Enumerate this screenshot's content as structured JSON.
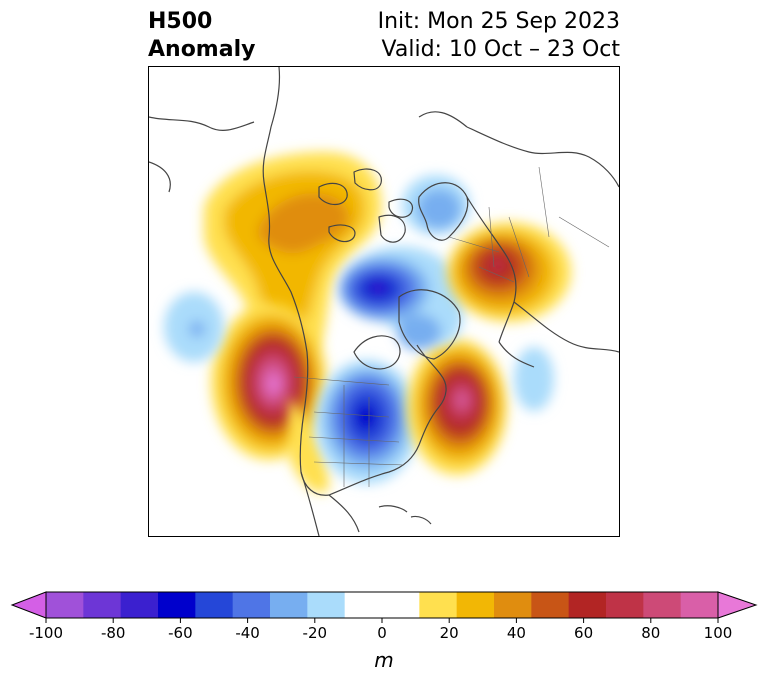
{
  "title": {
    "left_line1": "H500",
    "left_line2": "Anomaly",
    "right_line1": "Init: Mon 25 Sep 2023",
    "right_line2": "Valid: 10 Oct – 23 Oct"
  },
  "colorbar": {
    "unit": "m",
    "min": -100,
    "max": 100,
    "step": 10,
    "colors": [
      "#d45fe6",
      "#a051d9",
      "#6d36d6",
      "#3b20cf",
      "#0000cc",
      "#2547d8",
      "#4f75e6",
      "#77aef0",
      "#aadcfb",
      "#ffffff",
      "#ffffff",
      "#ffe04f",
      "#f2b705",
      "#e08d0f",
      "#c85516",
      "#b22524",
      "#bf3347",
      "#cd4a77",
      "#d95fa8",
      "#e878d8"
    ],
    "tick_values": [
      "-100",
      "-80",
      "-60",
      "-40",
      "-20",
      "0",
      "20",
      "40",
      "60",
      "80",
      "100"
    ]
  },
  "map": {
    "projection": "north-polar-stereographic",
    "anomaly_centers": [
      {
        "region": "northeast-pacific",
        "sign": "positive",
        "peak": 100
      },
      {
        "region": "central-north-america",
        "sign": "negative",
        "peak": -60
      },
      {
        "region": "northwest-atlantic",
        "sign": "positive",
        "peak": 80
      },
      {
        "region": "arctic-ocean",
        "sign": "negative",
        "peak": -60
      },
      {
        "region": "western-russia",
        "sign": "positive",
        "peak": 60
      },
      {
        "region": "scandinavia",
        "sign": "negative",
        "peak": -30
      },
      {
        "region": "northern-canada-alaska",
        "sign": "positive",
        "peak": 40
      },
      {
        "region": "central-pacific",
        "sign": "negative",
        "peak": -30
      },
      {
        "region": "eastern-atlantic",
        "sign": "negative",
        "peak": -20
      }
    ]
  }
}
